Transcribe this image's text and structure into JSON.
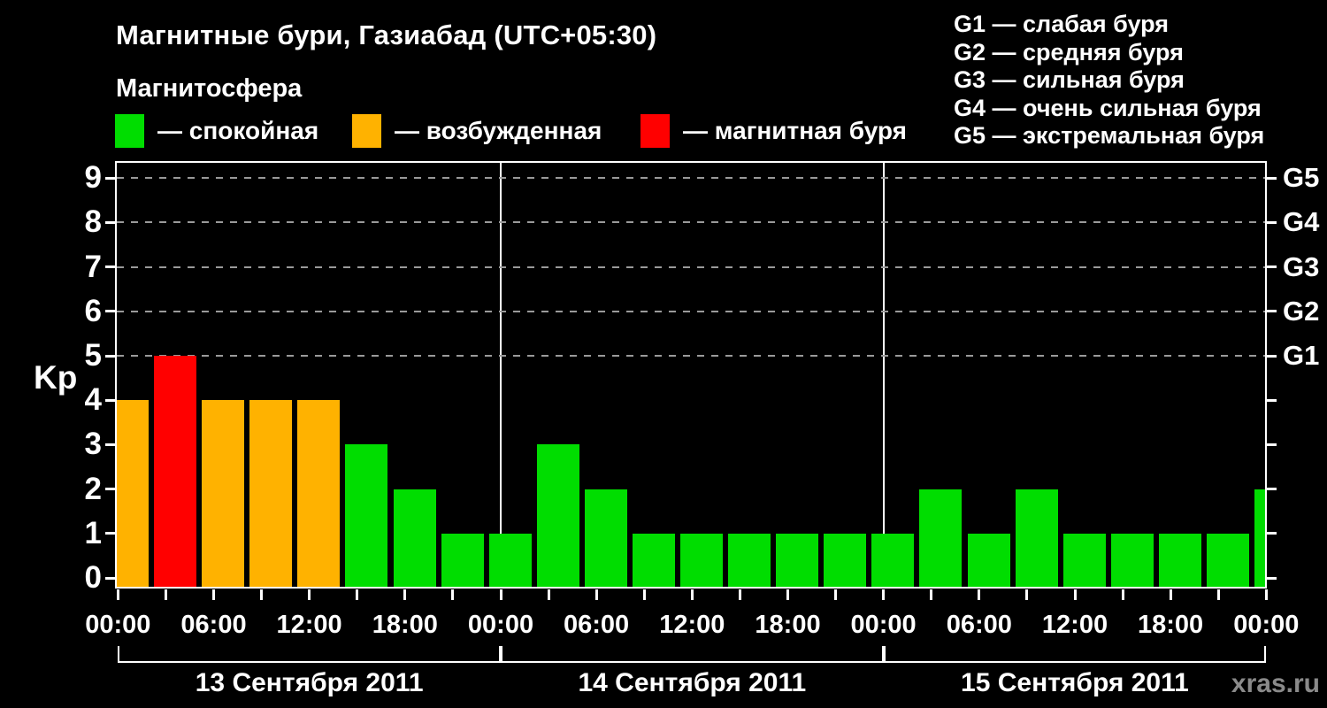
{
  "title": "Магнитные бури, Газиабад (UTC+05:30)",
  "subtitle": "Магнитосфера",
  "watermark": "xras.ru",
  "condition_legend": [
    {
      "label": "— спокойная",
      "color_key": "quiet"
    },
    {
      "label": "— возбужденная",
      "color_key": "excited"
    },
    {
      "label": "— магнитная буря",
      "color_key": "storm"
    }
  ],
  "storm_scale_legend": [
    {
      "code": "G1",
      "label": "слабая буря"
    },
    {
      "code": "G2",
      "label": "средняя буря"
    },
    {
      "code": "G3",
      "label": "сильная буря"
    },
    {
      "code": "G4",
      "label": "очень сильная буря"
    },
    {
      "code": "G5",
      "label": "экстремальная буря"
    }
  ],
  "chart_data": {
    "type": "bar",
    "ylabel": "Kp",
    "ylim": [
      0,
      9
    ],
    "yticks": [
      0,
      1,
      2,
      3,
      4,
      5,
      6,
      7,
      8,
      9
    ],
    "grid_dashed_levels": [
      5,
      6,
      7,
      8,
      9
    ],
    "right_axis": [
      {
        "label": "G1",
        "kp": 5
      },
      {
        "label": "G2",
        "kp": 6
      },
      {
        "label": "G3",
        "kp": 7
      },
      {
        "label": "G4",
        "kp": 8
      },
      {
        "label": "G5",
        "kp": 9
      }
    ],
    "x_tick_labels": [
      "00:00",
      "06:00",
      "12:00",
      "18:00",
      "00:00",
      "06:00",
      "12:00",
      "18:00",
      "00:00",
      "06:00",
      "12:00",
      "18:00",
      "00:00"
    ],
    "bar_interval_hours": 3,
    "days": [
      {
        "date": "13 Сентября 2011",
        "values": [
          4,
          5,
          4,
          4,
          4,
          3,
          2,
          1
        ]
      },
      {
        "date": "14 Сентября 2011",
        "values": [
          1,
          3,
          2,
          1,
          1,
          1,
          1,
          1
        ]
      },
      {
        "date": "15 Сентября 2011",
        "values": [
          1,
          2,
          1,
          2,
          1,
          1,
          1,
          1
        ]
      }
    ],
    "partial_next_value": 2,
    "colors": {
      "quiet": "#00dd00",
      "excited": "#ffb200",
      "storm": "#ff0000"
    },
    "color_rule": {
      "quiet_max_kp": 3,
      "excited_kp": 4,
      "storm_min_kp": 5
    }
  }
}
